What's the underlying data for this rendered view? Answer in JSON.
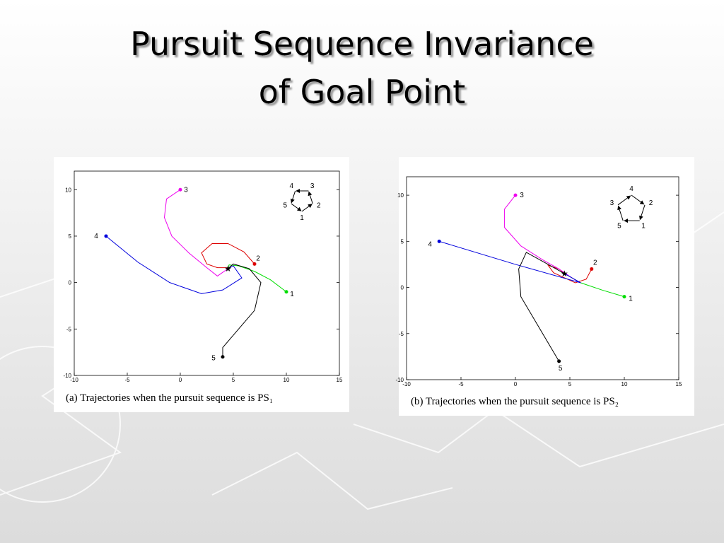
{
  "slide": {
    "title": [
      "Pursuit Sequence Invariance",
      "of Goal Point"
    ]
  },
  "chart_data": [
    {
      "type": "line",
      "caption": "(a) Trajectories when the pursuit sequence is PS₁",
      "xlim": [
        -10,
        15
      ],
      "ylim": [
        -10,
        12
      ],
      "xticks": [
        -10,
        -5,
        0,
        5,
        10,
        15
      ],
      "yticks": [
        -10,
        -5,
        0,
        5,
        10
      ],
      "goal": {
        "x": 4.5,
        "y": 1.5
      },
      "series": [
        {
          "name": "1",
          "color": "#00dd00",
          "x": [
            10,
            8.5,
            7,
            5.5,
            4.6,
            4.5
          ],
          "y": [
            -1,
            0.3,
            1.2,
            1.8,
            1.9,
            1.6
          ]
        },
        {
          "name": "2",
          "color": "#dd0000",
          "x": [
            7,
            6,
            4.5,
            3,
            2,
            2.5,
            3.5,
            4.5
          ],
          "y": [
            2,
            3.3,
            4.2,
            4.2,
            3.2,
            2,
            1.6,
            1.6
          ]
        },
        {
          "name": "3",
          "color": "#ee00ee",
          "x": [
            0,
            -1.3,
            -1.5,
            -0.8,
            0.8,
            2.5,
            3.5,
            4.5
          ],
          "y": [
            10,
            9,
            7,
            5,
            3.2,
            1.6,
            0.7,
            1.5
          ]
        },
        {
          "name": "4",
          "color": "#0000dd",
          "x": [
            -7,
            -4,
            -1,
            2,
            4,
            5.8,
            5,
            4.5
          ],
          "y": [
            5,
            2.2,
            0,
            -1.2,
            -0.8,
            0.5,
            1.8,
            1.5
          ]
        },
        {
          "name": "5",
          "color": "#000000",
          "x": [
            4,
            4,
            5.5,
            7,
            7.6,
            6.5,
            5,
            4.5
          ],
          "y": [
            -8,
            -7,
            -5,
            -3,
            0,
            1.5,
            2,
            1.5
          ]
        }
      ]
    },
    {
      "type": "line",
      "caption": "(b) Trajectories when the pursuit sequence is PS₂",
      "xlim": [
        -10,
        15
      ],
      "ylim": [
        -10,
        12
      ],
      "xticks": [
        -10,
        -5,
        0,
        5,
        10,
        15
      ],
      "yticks": [
        -10,
        -5,
        0,
        5,
        10
      ],
      "goal": {
        "x": 4.5,
        "y": 1.5
      },
      "series": [
        {
          "name": "1",
          "color": "#00dd00",
          "x": [
            10,
            8,
            6,
            4.5
          ],
          "y": [
            -1,
            -0.3,
            0.5,
            1.5
          ]
        },
        {
          "name": "2",
          "color": "#dd0000",
          "x": [
            7,
            6.5,
            5.5,
            3.5,
            3,
            4,
            4.5
          ],
          "y": [
            2,
            0.9,
            0.5,
            1.6,
            2.4,
            2,
            1.5
          ]
        },
        {
          "name": "3",
          "color": "#ee00ee",
          "x": [
            0,
            -1,
            -1,
            0.5,
            2.5,
            4,
            5.5,
            6
          ],
          "y": [
            10,
            8.5,
            6.5,
            4.5,
            3,
            2,
            0.8,
            0.5
          ]
        },
        {
          "name": "4",
          "color": "#0000dd",
          "x": [
            -7,
            0,
            6,
            4.5
          ],
          "y": [
            5,
            2.5,
            0.5,
            1.5
          ]
        },
        {
          "name": "5",
          "color": "#000000",
          "x": [
            4,
            2,
            0.5,
            0.3,
            1,
            3,
            4.5
          ],
          "y": [
            -8,
            -4,
            -1,
            2,
            3.8,
            2.5,
            1.5
          ]
        }
      ]
    }
  ]
}
